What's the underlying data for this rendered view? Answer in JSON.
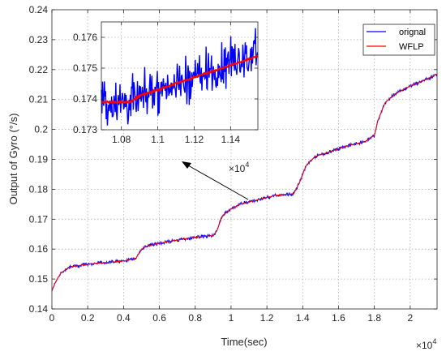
{
  "chart_data": [
    {
      "type": "line",
      "xlabel": "Time(sec)",
      "ylabel": "Output of Gyro (°/s)",
      "x_multiplier_label": "×10",
      "x_multiplier_exp": "4",
      "xlim": [
        0,
        2.15
      ],
      "ylim": [
        0.14,
        0.24
      ],
      "xticks": [
        "0",
        "0.2",
        "0.4",
        "0.6",
        "0.8",
        "1",
        "1.2",
        "1.4",
        "1.6",
        "1.8",
        "2"
      ],
      "yticks": [
        "0.14",
        "0.15",
        "0.16",
        "0.17",
        "0.18",
        "0.19",
        "0.2",
        "0.21",
        "0.22",
        "0.23",
        "0.24"
      ],
      "grid": true,
      "legend_position": "top-right",
      "series": [
        {
          "name": "orignal",
          "color": "#0000ff"
        },
        {
          "name": "WFLP",
          "color": "#ff0000"
        }
      ],
      "x": [
        0,
        0.02,
        0.05,
        0.1,
        0.2,
        0.3,
        0.4,
        0.47,
        0.5,
        0.53,
        0.6,
        0.7,
        0.8,
        0.9,
        0.92,
        0.95,
        0.99,
        1.05,
        1.15,
        1.25,
        1.35,
        1.38,
        1.42,
        1.47,
        1.55,
        1.65,
        1.75,
        1.8,
        1.82,
        1.86,
        1.92,
        2.0,
        2.1,
        2.15
      ],
      "y": [
        0.146,
        0.149,
        0.152,
        0.154,
        0.155,
        0.1555,
        0.156,
        0.157,
        0.16,
        0.161,
        0.162,
        0.163,
        0.164,
        0.1645,
        0.166,
        0.171,
        0.173,
        0.175,
        0.1765,
        0.178,
        0.1785,
        0.182,
        0.188,
        0.191,
        0.1925,
        0.1945,
        0.196,
        0.198,
        0.203,
        0.209,
        0.212,
        0.2145,
        0.217,
        0.2185
      ]
    },
    {
      "type": "line",
      "role": "inset",
      "x_multiplier_label": "×10",
      "x_multiplier_exp": "4",
      "xlim": [
        1.069,
        1.155
      ],
      "ylim": [
        0.173,
        0.1765
      ],
      "xticks": [
        "1.08",
        "1.1",
        "1.12",
        "1.14"
      ],
      "yticks": [
        "0.173",
        "0.174",
        "0.175",
        "0.176"
      ],
      "grid": true,
      "series": [
        {
          "name": "orignal",
          "color": "#0000ff"
        },
        {
          "name": "WFLP",
          "color": "#ff0000"
        }
      ],
      "x": [
        1.069,
        1.075,
        1.08,
        1.085,
        1.09,
        1.095,
        1.1,
        1.105,
        1.11,
        1.115,
        1.12,
        1.125,
        1.13,
        1.135,
        1.14,
        1.145,
        1.15,
        1.155
      ],
      "y": [
        0.1739,
        0.1739,
        0.1739,
        0.1739,
        0.1741,
        0.1742,
        0.1743,
        0.1744,
        0.1745,
        0.1746,
        0.1747,
        0.1748,
        0.1749,
        0.175,
        0.1751,
        0.1752,
        0.1753,
        0.1754
      ]
    }
  ]
}
